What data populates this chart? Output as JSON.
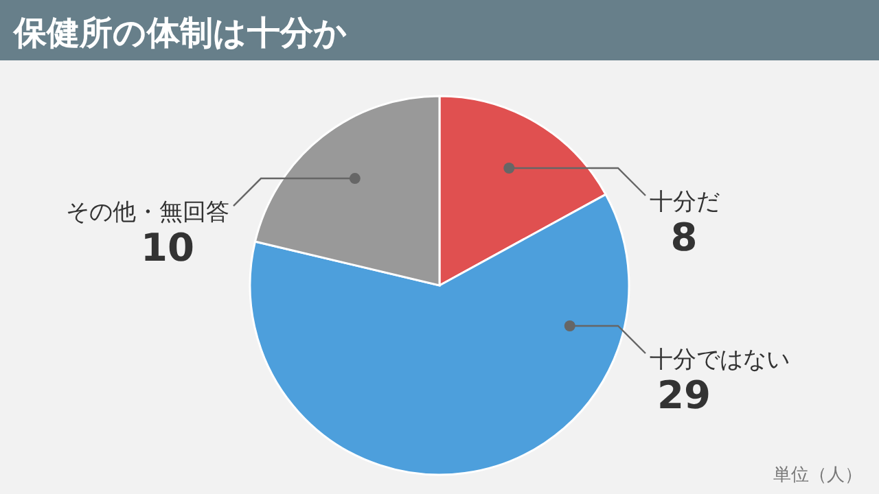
{
  "chart_data": {
    "type": "pie",
    "title": "保健所の体制は十分か",
    "categories": [
      "十分だ",
      "十分ではない",
      "その他・無回答"
    ],
    "values": [
      8,
      29,
      10
    ],
    "colors": [
      "#e05050",
      "#4d9fdc",
      "#999999"
    ],
    "data_labels": true,
    "annotations": [
      "単位（人）"
    ]
  }
}
